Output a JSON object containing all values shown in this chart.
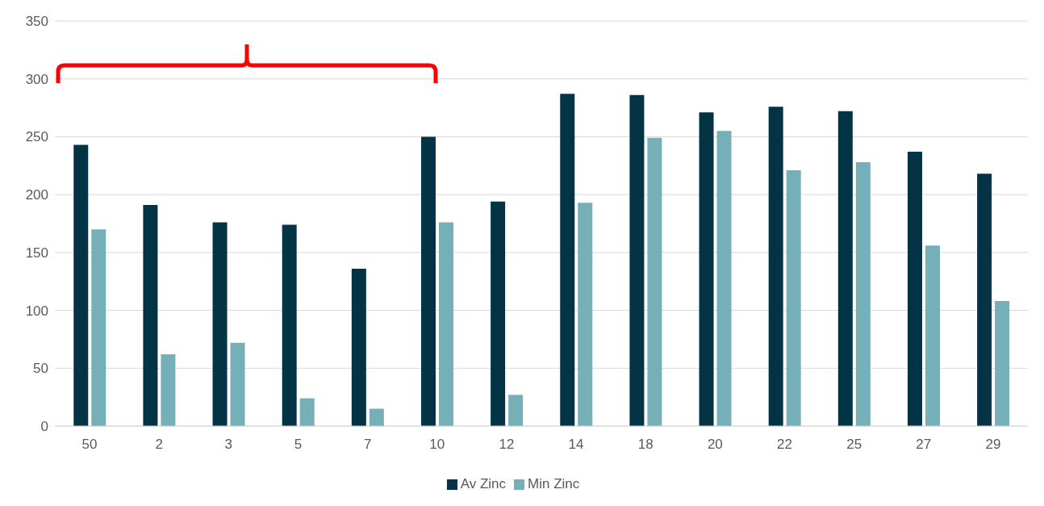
{
  "chart_data": {
    "type": "bar",
    "categories": [
      "50",
      "2",
      "3",
      "5",
      "7",
      "10",
      "12",
      "14",
      "18",
      "20",
      "22",
      "25",
      "27",
      "29"
    ],
    "series": [
      {
        "name": "Av Zinc",
        "color": "#033446",
        "values": [
          243,
          191,
          176,
          174,
          136,
          250,
          194,
          287,
          286,
          271,
          276,
          272,
          237,
          218
        ]
      },
      {
        "name": "Min Zinc",
        "color": "#75afb8",
        "values": [
          170,
          62,
          72,
          24,
          15,
          176,
          27,
          193,
          249,
          255,
          221,
          228,
          156,
          108
        ]
      }
    ],
    "ylim": [
      0,
      350
    ],
    "yticks": [
      0,
      50,
      100,
      150,
      200,
      250,
      300,
      350
    ],
    "grid": "y",
    "legend": "bottom"
  }
}
